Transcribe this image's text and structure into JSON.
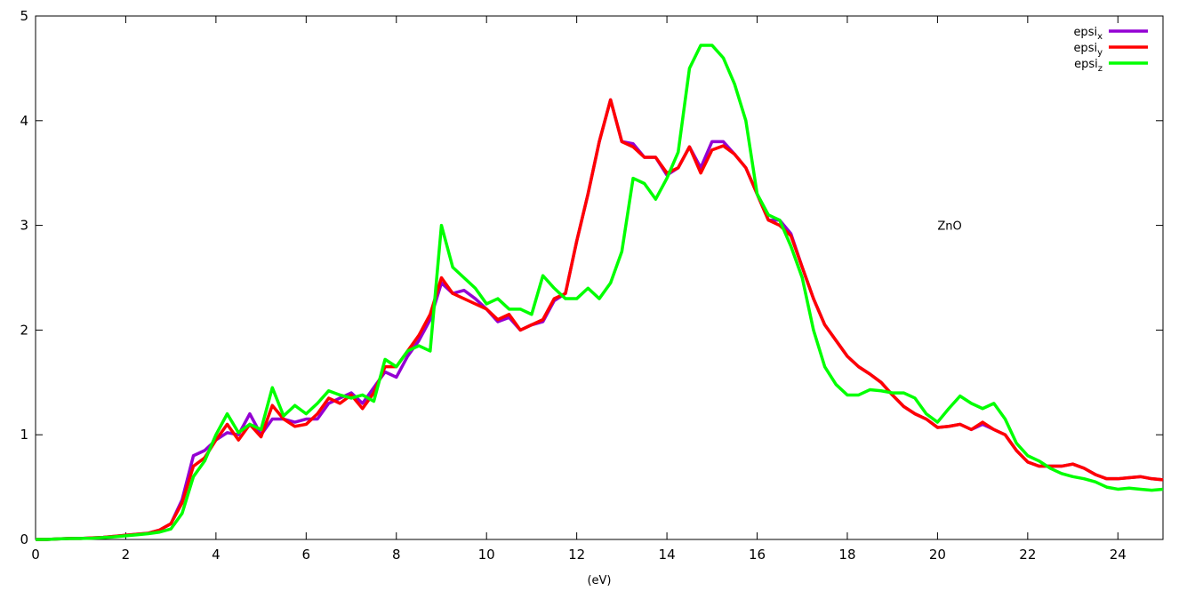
{
  "chart_data": {
    "type": "line",
    "x_label": "(eV)",
    "annotation": {
      "text": "ZnO",
      "x": 20,
      "y": 3
    },
    "xlim": [
      0,
      25
    ],
    "ylim": [
      0,
      5
    ],
    "xticks": [
      0,
      2,
      4,
      6,
      8,
      10,
      12,
      14,
      16,
      18,
      20,
      22,
      24
    ],
    "yticks": [
      0,
      1,
      2,
      3,
      4,
      5
    ],
    "grid": false,
    "legend": "top-right",
    "x": [
      0,
      0.25,
      0.5,
      0.75,
      1,
      1.25,
      1.5,
      1.75,
      2,
      2.25,
      2.5,
      2.75,
      3,
      3.25,
      3.5,
      3.75,
      4,
      4.25,
      4.5,
      4.75,
      5,
      5.25,
      5.5,
      5.75,
      6,
      6.25,
      6.5,
      6.75,
      7,
      7.25,
      7.5,
      7.75,
      8,
      8.25,
      8.5,
      8.75,
      9,
      9.25,
      9.5,
      9.75,
      10,
      10.25,
      10.5,
      10.75,
      11,
      11.25,
      11.5,
      11.75,
      12,
      12.25,
      12.5,
      12.75,
      13,
      13.25,
      13.5,
      13.75,
      14,
      14.25,
      14.5,
      14.75,
      15,
      15.25,
      15.5,
      15.75,
      16,
      16.25,
      16.5,
      16.75,
      17,
      17.25,
      17.5,
      17.75,
      18,
      18.25,
      18.5,
      18.75,
      19,
      19.25,
      19.5,
      19.75,
      20,
      20.25,
      20.5,
      20.75,
      21,
      21.25,
      21.5,
      21.75,
      22,
      22.25,
      22.5,
      22.75,
      23,
      23.25,
      23.5,
      23.75,
      24,
      24.25,
      24.5,
      24.75,
      25
    ],
    "series": [
      {
        "name": "epsix",
        "color": "#9400d3",
        "values": [
          0,
          0,
          0.005,
          0.01,
          0.01,
          0.015,
          0.02,
          0.03,
          0.04,
          0.05,
          0.06,
          0.09,
          0.15,
          0.38,
          0.8,
          0.85,
          0.95,
          1.02,
          1.0,
          1.2,
          1.0,
          1.15,
          1.15,
          1.12,
          1.15,
          1.15,
          1.3,
          1.35,
          1.4,
          1.3,
          1.45,
          1.6,
          1.55,
          1.75,
          1.9,
          2.1,
          2.45,
          2.35,
          2.38,
          2.3,
          2.2,
          2.08,
          2.12,
          2.0,
          2.05,
          2.08,
          2.28,
          2.35,
          2.85,
          3.3,
          3.8,
          4.2,
          3.8,
          3.78,
          3.65,
          3.65,
          3.48,
          3.55,
          3.75,
          3.55,
          3.8,
          3.8,
          3.68,
          3.55,
          3.3,
          3.05,
          3.05,
          2.92,
          2.6,
          2.3,
          2.05,
          1.9,
          1.75,
          1.65,
          1.58,
          1.5,
          1.38,
          1.27,
          1.2,
          1.15,
          1.07,
          1.08,
          1.1,
          1.05,
          1.1,
          1.05,
          1.0,
          0.85,
          0.74,
          0.7,
          0.7,
          0.7,
          0.72,
          0.68,
          0.62,
          0.58,
          0.58,
          0.59,
          0.6,
          0.58,
          0.57
        ]
      },
      {
        "name": "epsiy",
        "color": "#ff0000",
        "values": [
          0,
          0,
          0.005,
          0.01,
          0.01,
          0.015,
          0.02,
          0.03,
          0.04,
          0.05,
          0.06,
          0.09,
          0.15,
          0.35,
          0.7,
          0.78,
          0.95,
          1.1,
          0.95,
          1.1,
          0.98,
          1.28,
          1.15,
          1.08,
          1.1,
          1.2,
          1.35,
          1.3,
          1.38,
          1.25,
          1.4,
          1.65,
          1.65,
          1.8,
          1.95,
          2.15,
          2.5,
          2.35,
          2.3,
          2.25,
          2.2,
          2.1,
          2.15,
          2.0,
          2.05,
          2.1,
          2.3,
          2.35,
          2.85,
          3.3,
          3.8,
          4.2,
          3.8,
          3.75,
          3.65,
          3.65,
          3.5,
          3.55,
          3.75,
          3.5,
          3.72,
          3.76,
          3.68,
          3.55,
          3.3,
          3.05,
          3.0,
          2.9,
          2.6,
          2.3,
          2.05,
          1.9,
          1.75,
          1.65,
          1.58,
          1.5,
          1.38,
          1.27,
          1.2,
          1.15,
          1.07,
          1.08,
          1.1,
          1.05,
          1.12,
          1.05,
          1.0,
          0.85,
          0.74,
          0.7,
          0.7,
          0.7,
          0.72,
          0.68,
          0.62,
          0.58,
          0.58,
          0.59,
          0.6,
          0.58,
          0.57
        ]
      },
      {
        "name": "epsiz",
        "color": "#00ff00",
        "values": [
          0,
          0,
          0.005,
          0.008,
          0.01,
          0.012,
          0.018,
          0.025,
          0.035,
          0.045,
          0.055,
          0.07,
          0.1,
          0.25,
          0.6,
          0.75,
          1.0,
          1.2,
          1.02,
          1.1,
          1.05,
          1.45,
          1.18,
          1.28,
          1.2,
          1.3,
          1.42,
          1.38,
          1.35,
          1.38,
          1.32,
          1.72,
          1.65,
          1.8,
          1.85,
          1.8,
          3.0,
          2.6,
          2.5,
          2.4,
          2.25,
          2.3,
          2.2,
          2.2,
          2.15,
          2.52,
          2.4,
          2.3,
          2.3,
          2.4,
          2.3,
          2.45,
          2.75,
          3.45,
          3.4,
          3.25,
          3.45,
          3.7,
          4.5,
          4.72,
          4.72,
          4.6,
          4.35,
          4.0,
          3.3,
          3.1,
          3.05,
          2.8,
          2.5,
          2.0,
          1.65,
          1.48,
          1.38,
          1.38,
          1.43,
          1.42,
          1.4,
          1.4,
          1.35,
          1.2,
          1.12,
          1.25,
          1.37,
          1.3,
          1.25,
          1.3,
          1.15,
          0.92,
          0.8,
          0.75,
          0.68,
          0.63,
          0.6,
          0.58,
          0.55,
          0.5,
          0.48,
          0.49,
          0.48,
          0.47,
          0.48
        ]
      }
    ]
  }
}
